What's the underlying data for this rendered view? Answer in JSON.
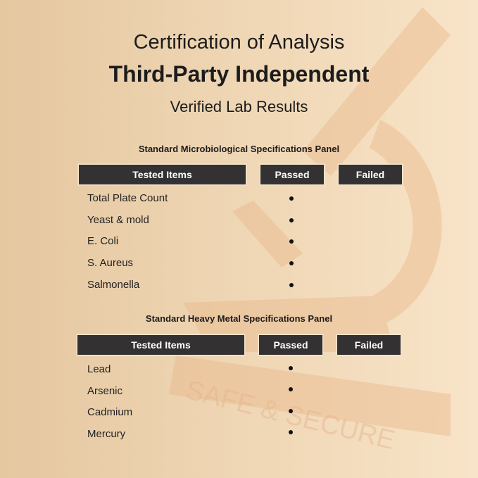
{
  "header": {
    "line1": "Certification of Analysis",
    "line2": "Third-Party Independent",
    "line3": "Verified Lab Results"
  },
  "watermark": {
    "text": "SAFE & SECURE",
    "icon": "microscope-icon"
  },
  "panels": [
    {
      "title": "Standard Microbiological Specifications Panel",
      "columns": [
        "Tested Items",
        "Passed",
        "Failed"
      ],
      "rows": [
        {
          "item": "Total Plate Count",
          "result": "passed"
        },
        {
          "item": "Yeast & mold",
          "result": "passed"
        },
        {
          "item": "E. Coli",
          "result": "passed"
        },
        {
          "item": "S. Aureus",
          "result": "passed"
        },
        {
          "item": "Salmonella",
          "result": "passed"
        }
      ]
    },
    {
      "title": "Standard Heavy Metal Specifications Panel",
      "columns": [
        "Tested Items",
        "Passed",
        "Failed"
      ],
      "rows": [
        {
          "item": "Lead",
          "result": "passed"
        },
        {
          "item": "Arsenic",
          "result": "passed"
        },
        {
          "item": "Cadmium",
          "result": "passed"
        },
        {
          "item": "Mercury",
          "result": "passed"
        }
      ]
    }
  ],
  "colors": {
    "header_bar": "#333131",
    "background": "#efd6b4"
  }
}
